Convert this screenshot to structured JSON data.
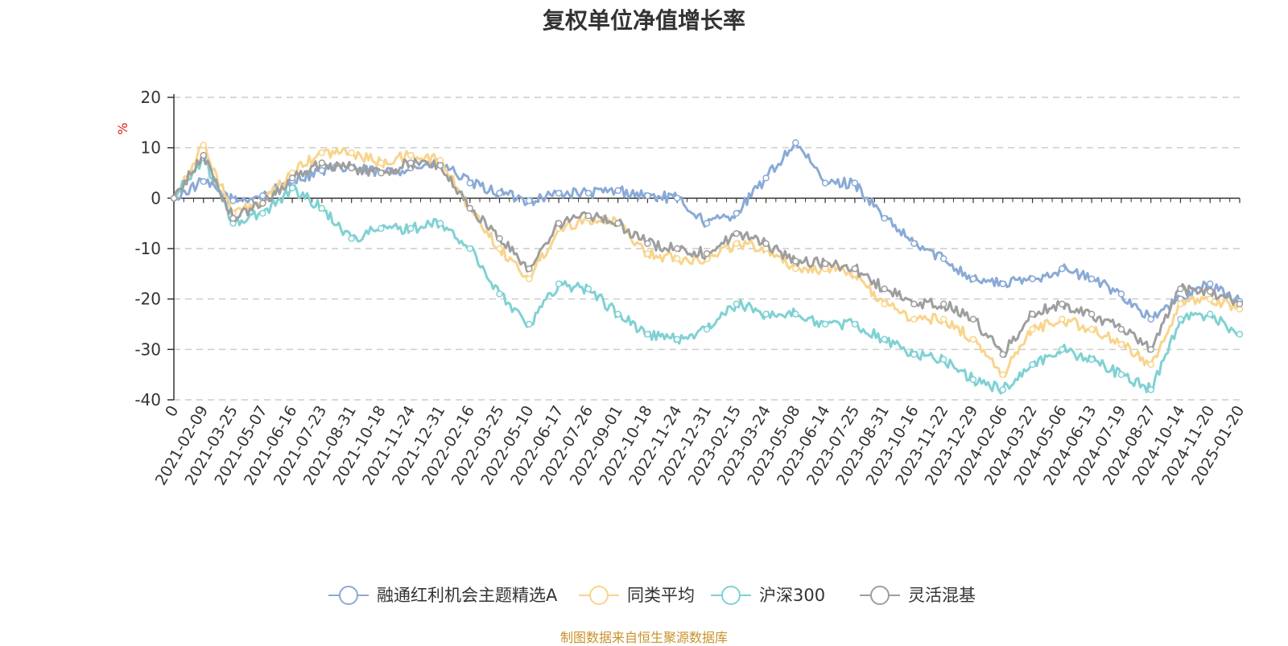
{
  "chart_data": {
    "type": "line",
    "title": "复权单位净值增长率",
    "ylabel": "%",
    "xlabel": "",
    "ylim": [
      -40,
      20
    ],
    "yticks": [
      20,
      10,
      0,
      -10,
      -20,
      -30,
      -40
    ],
    "grid": true,
    "legend_position": "bottom",
    "categories": [
      "0",
      "2021-02-09",
      "2021-03-25",
      "2021-05-07",
      "2021-06-16",
      "2021-07-23",
      "2021-08-31",
      "2021-10-18",
      "2021-11-24",
      "2021-12-31",
      "2022-02-16",
      "2022-03-25",
      "2022-05-10",
      "2022-06-17",
      "2022-07-26",
      "2022-09-01",
      "2022-10-18",
      "2022-11-24",
      "2022-12-31",
      "2023-02-15",
      "2023-03-24",
      "2023-05-08",
      "2023-06-14",
      "2023-07-25",
      "2023-08-31",
      "2023-10-16",
      "2023-11-22",
      "2023-12-29",
      "2024-02-06",
      "2024-03-22",
      "2024-05-06",
      "2024-06-13",
      "2024-07-19",
      "2024-08-27",
      "2024-10-14",
      "2024-11-20",
      "2025-01-20"
    ],
    "series": [
      {
        "name": "融通红利机会主题精选A",
        "color": "#8aaad6",
        "values": [
          0,
          3.3,
          -0.5,
          0.5,
          3.5,
          5.5,
          6,
          5,
          6,
          7,
          3,
          1,
          -0.5,
          1,
          1,
          1.5,
          0.5,
          0,
          -5,
          -3,
          4,
          11,
          3,
          3,
          -4,
          -9,
          -12,
          -16,
          -17,
          -16,
          -14,
          -16,
          -19,
          -24,
          -20,
          -17,
          -20.5
        ]
      },
      {
        "name": "同类平均",
        "color": "#f9d48b",
        "values": [
          0,
          10.5,
          -3,
          -1,
          5,
          9,
          9,
          7,
          8.5,
          7.5,
          -2,
          -10,
          -16,
          -6,
          -4,
          -5,
          -11,
          -12,
          -12,
          -9,
          -10,
          -14,
          -14,
          -15,
          -21,
          -24,
          -24,
          -28,
          -35,
          -26,
          -24,
          -26,
          -29,
          -33,
          -21,
          -20,
          -22
        ]
      },
      {
        "name": "沪深300",
        "color": "#7fd1d3",
        "values": [
          0,
          8,
          -5,
          -3,
          2,
          -2,
          -8,
          -6,
          -6,
          -5,
          -10,
          -19,
          -25,
          -17,
          -18,
          -23,
          -27,
          -28,
          -26,
          -21,
          -23,
          -23,
          -25,
          -25,
          -28,
          -31,
          -32,
          -36,
          -38,
          -33,
          -30,
          -32,
          -35,
          -38,
          -24,
          -23,
          -27
        ]
      },
      {
        "name": "灵活混基",
        "color": "#9e9e9e",
        "values": [
          0,
          8.5,
          -4,
          -1,
          4,
          7,
          6,
          5,
          7,
          6.5,
          -2,
          -8,
          -14,
          -5,
          -3.5,
          -5,
          -9,
          -10,
          -11,
          -7,
          -9,
          -12.5,
          -13,
          -14,
          -18,
          -21,
          -21,
          -24,
          -31,
          -23,
          -21,
          -23,
          -26,
          -30,
          -18,
          -18.5,
          -21
        ]
      }
    ]
  },
  "page": {
    "title": "复权单位净值增长率",
    "ylabel": "%",
    "source": "制图数据来自恒生聚源数据库"
  }
}
